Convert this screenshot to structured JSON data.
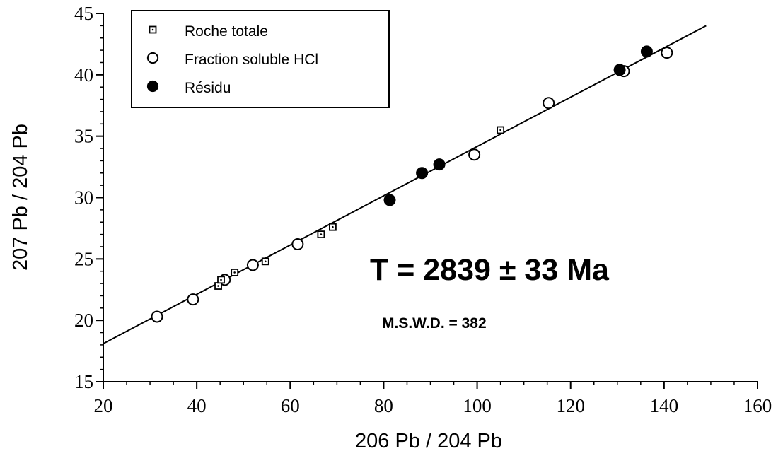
{
  "chart_data": {
    "type": "scatter",
    "title": "",
    "xlabel": "206 Pb / 204 Pb",
    "ylabel": "207 Pb / 204 Pb",
    "xlim": [
      20,
      160
    ],
    "ylim": [
      15,
      45
    ],
    "xticks": [
      20,
      40,
      60,
      80,
      100,
      120,
      140,
      160
    ],
    "yticks": [
      15,
      20,
      25,
      30,
      35,
      40,
      45
    ],
    "grid": false,
    "legend_position": "top-left",
    "series": [
      {
        "name": "Roche totale",
        "marker": "square-dot",
        "points": [
          {
            "x": 44.6,
            "y": 22.8
          },
          {
            "x": 45.2,
            "y": 23.3
          },
          {
            "x": 48.1,
            "y": 23.9
          },
          {
            "x": 54.7,
            "y": 24.8
          },
          {
            "x": 66.6,
            "y": 27.0
          },
          {
            "x": 69.1,
            "y": 27.6
          },
          {
            "x": 105.0,
            "y": 35.5
          }
        ]
      },
      {
        "name": "Fraction soluble HCl",
        "marker": "open-circle",
        "points": [
          {
            "x": 31.5,
            "y": 20.3
          },
          {
            "x": 39.2,
            "y": 21.7
          },
          {
            "x": 46.0,
            "y": 23.3
          },
          {
            "x": 52.0,
            "y": 24.5
          },
          {
            "x": 61.6,
            "y": 26.2
          },
          {
            "x": 99.4,
            "y": 33.5
          },
          {
            "x": 115.3,
            "y": 37.7
          },
          {
            "x": 131.4,
            "y": 40.3
          },
          {
            "x": 140.6,
            "y": 41.8
          }
        ]
      },
      {
        "name": "Résidu",
        "marker": "filled-circle",
        "points": [
          {
            "x": 81.3,
            "y": 29.8
          },
          {
            "x": 88.2,
            "y": 32.0
          },
          {
            "x": 91.9,
            "y": 32.7
          },
          {
            "x": 130.5,
            "y": 40.4
          },
          {
            "x": 136.3,
            "y": 41.9
          }
        ]
      }
    ],
    "regression_line": {
      "x": [
        20,
        149
      ],
      "y": [
        18.1,
        44.0
      ]
    },
    "annotations": {
      "age": "T  =  2839  ±  33  Ma",
      "mswd": "M.S.W.D.  =  382"
    },
    "colors": {
      "ink": "#000000",
      "background": "#ffffff",
      "legend_border": "#000000"
    }
  }
}
